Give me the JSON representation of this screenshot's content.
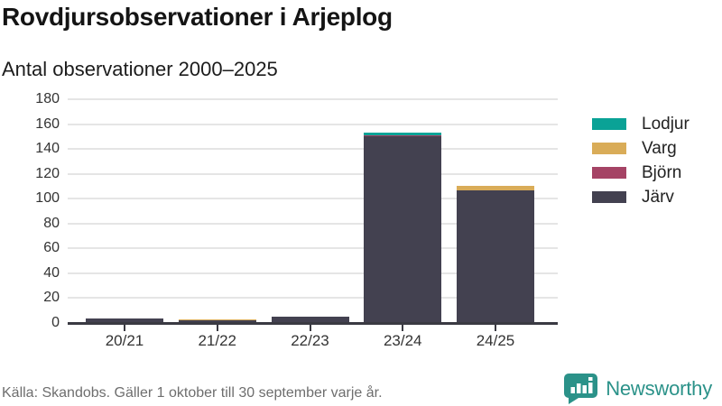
{
  "header": {
    "title": "Rovdjursobservationer i Arjeplog",
    "subtitle": "Antal observationer 2000–2025"
  },
  "chart_data": {
    "type": "bar",
    "stacked": true,
    "title": "Rovdjursobservationer i Arjeplog",
    "subtitle": "Antal observationer 2000–2025",
    "categories": [
      "20/21",
      "21/22",
      "22/23",
      "23/24",
      "24/25"
    ],
    "series": [
      {
        "name": "Järv",
        "color": "#434150",
        "values": [
          4,
          2,
          5,
          150,
          107
        ]
      },
      {
        "name": "Björn",
        "color": "#a54365",
        "values": [
          0,
          0,
          0,
          1,
          0
        ]
      },
      {
        "name": "Varg",
        "color": "#d9ac58",
        "values": [
          0,
          1,
          0,
          0,
          3
        ]
      },
      {
        "name": "Lodjur",
        "color": "#0aa296",
        "values": [
          0,
          0,
          0,
          2,
          0
        ]
      }
    ],
    "totals": [
      4,
      3,
      5,
      153,
      110
    ],
    "legend_order": [
      "Lodjur",
      "Varg",
      "Björn",
      "Järv"
    ],
    "legend_position": "right",
    "ylim": [
      0,
      180
    ],
    "ytick_step": 20,
    "grid": true,
    "xlabel": "",
    "ylabel": ""
  },
  "footer": {
    "source": "Källa: Skandobs. Gäller 1 oktober till 30 september varje år.",
    "logo_text": "Newsworthy"
  },
  "colors": {
    "grid": "#e5e5e5",
    "axis": "#3a3a42",
    "tick_label": "#333333",
    "source_text": "#6e6e6e",
    "brand_teal": "#2b9289"
  }
}
